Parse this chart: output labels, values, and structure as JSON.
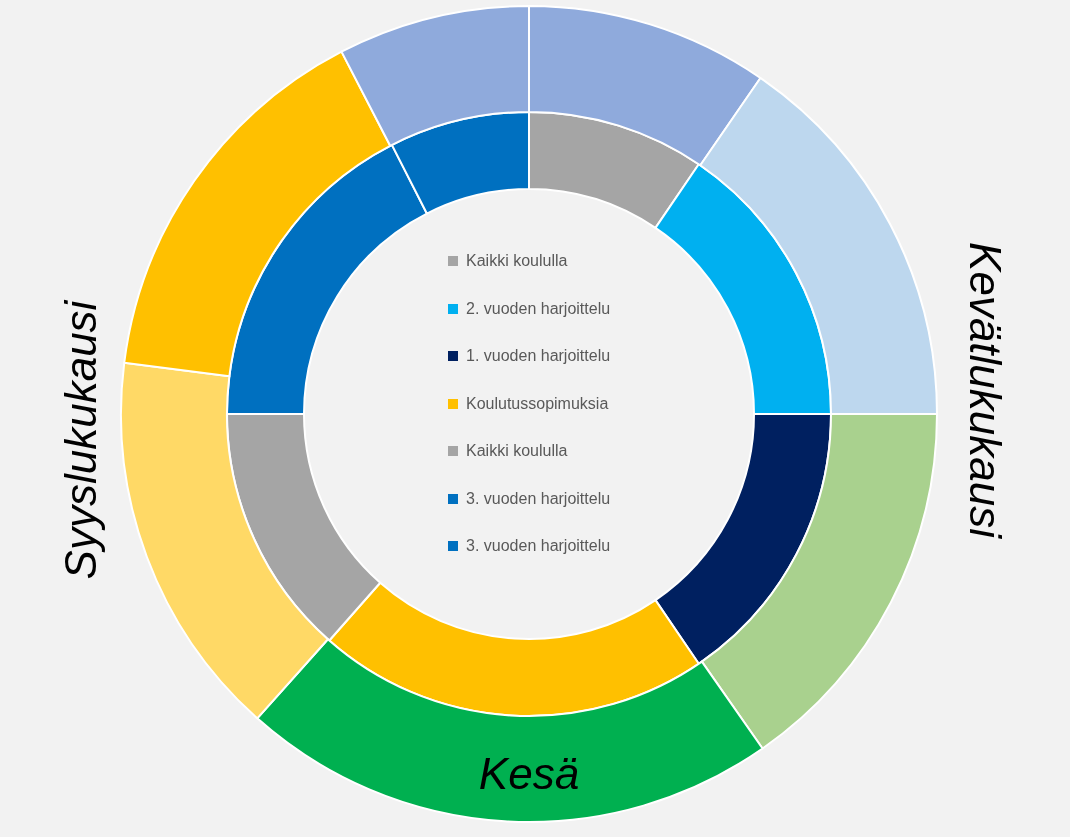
{
  "chart_data": {
    "type": "donut",
    "categories": [
      "Kaikki koululla",
      "2. vuoden harjoittelu",
      "1. vuoden harjoittelu",
      "Koulutussopimuksia",
      "Kaikki koululla",
      "3. vuoden harjoittelu",
      "3. vuoden harjoittelu"
    ],
    "series": [
      {
        "values": [
          9.5,
          15.5,
          15.5,
          21,
          13.5,
          17.5,
          7.5
        ],
        "colors": [
          "#a5a5a5",
          "#00b0f0",
          "#002060",
          "#ffc000",
          "#a5a5a5",
          "#0070c0",
          "#0070c0"
        ]
      },
      {
        "values": [
          9.6,
          15.4,
          15.3,
          21.3,
          15.4,
          15.4,
          7.6
        ],
        "colors": [
          "#8faadc",
          "#bdd7ee",
          "#a9d18e",
          "#00b050",
          "#ffd966",
          "#ffc000",
          "#8faadc"
        ]
      }
    ],
    "annotations": [
      "Kevätlukukausi",
      "Kesä",
      "Syyslukukausi"
    ],
    "legend": "center"
  }
}
